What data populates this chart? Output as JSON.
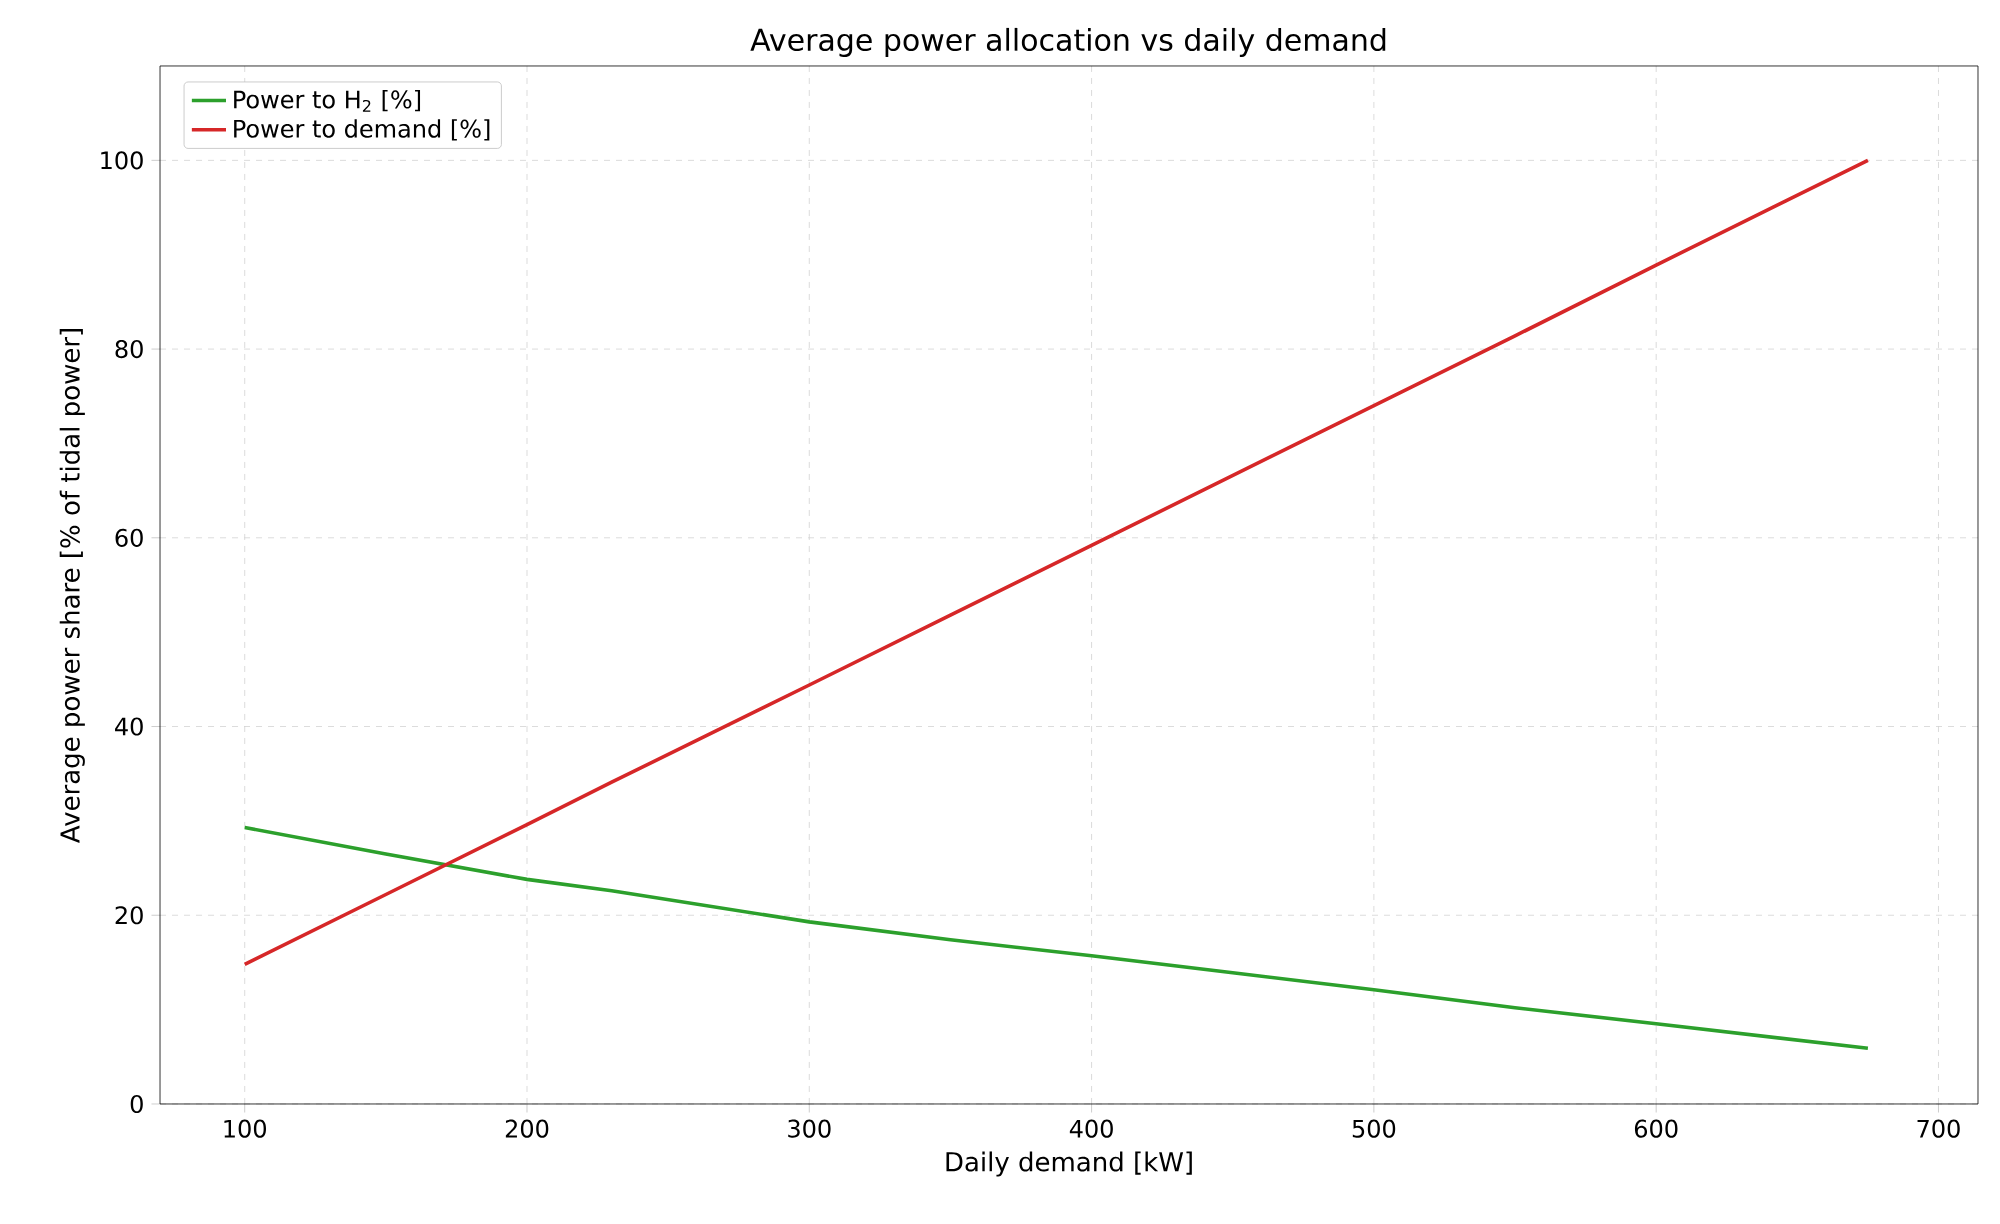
{
  "chart_data": {
    "type": "line",
    "title": "Average power allocation vs daily demand",
    "xlabel": "Daily demand [kW]",
    "ylabel": "Average power share [% of tidal power]",
    "x": [
      100,
      150,
      200,
      230,
      300,
      350,
      400,
      450,
      500,
      550,
      600,
      675
    ],
    "series": [
      {
        "name": "Power to H$_{2}$ [%]",
        "color": "#2ca02c",
        "values": [
          29.3,
          26.5,
          23.8,
          22.6,
          19.3,
          17.4,
          15.7,
          13.9,
          12.1,
          10.2,
          8.5,
          5.9
        ]
      },
      {
        "name": "Power to demand [%]",
        "color": "#d62728",
        "values": [
          14.8,
          22.2,
          29.6,
          34.1,
          44.4,
          51.8,
          59.2,
          66.6,
          74.0,
          81.4,
          88.9,
          100
        ]
      }
    ],
    "xlim": [
      70,
      714
    ],
    "ylim": [
      0,
      110
    ],
    "xticks": [
      100,
      200,
      300,
      400,
      500,
      600,
      700
    ],
    "yticks": [
      0,
      20,
      40,
      60,
      80,
      100
    ],
    "grid": true,
    "legend": "top left",
    "line_style": "solid",
    "marker": "none"
  }
}
